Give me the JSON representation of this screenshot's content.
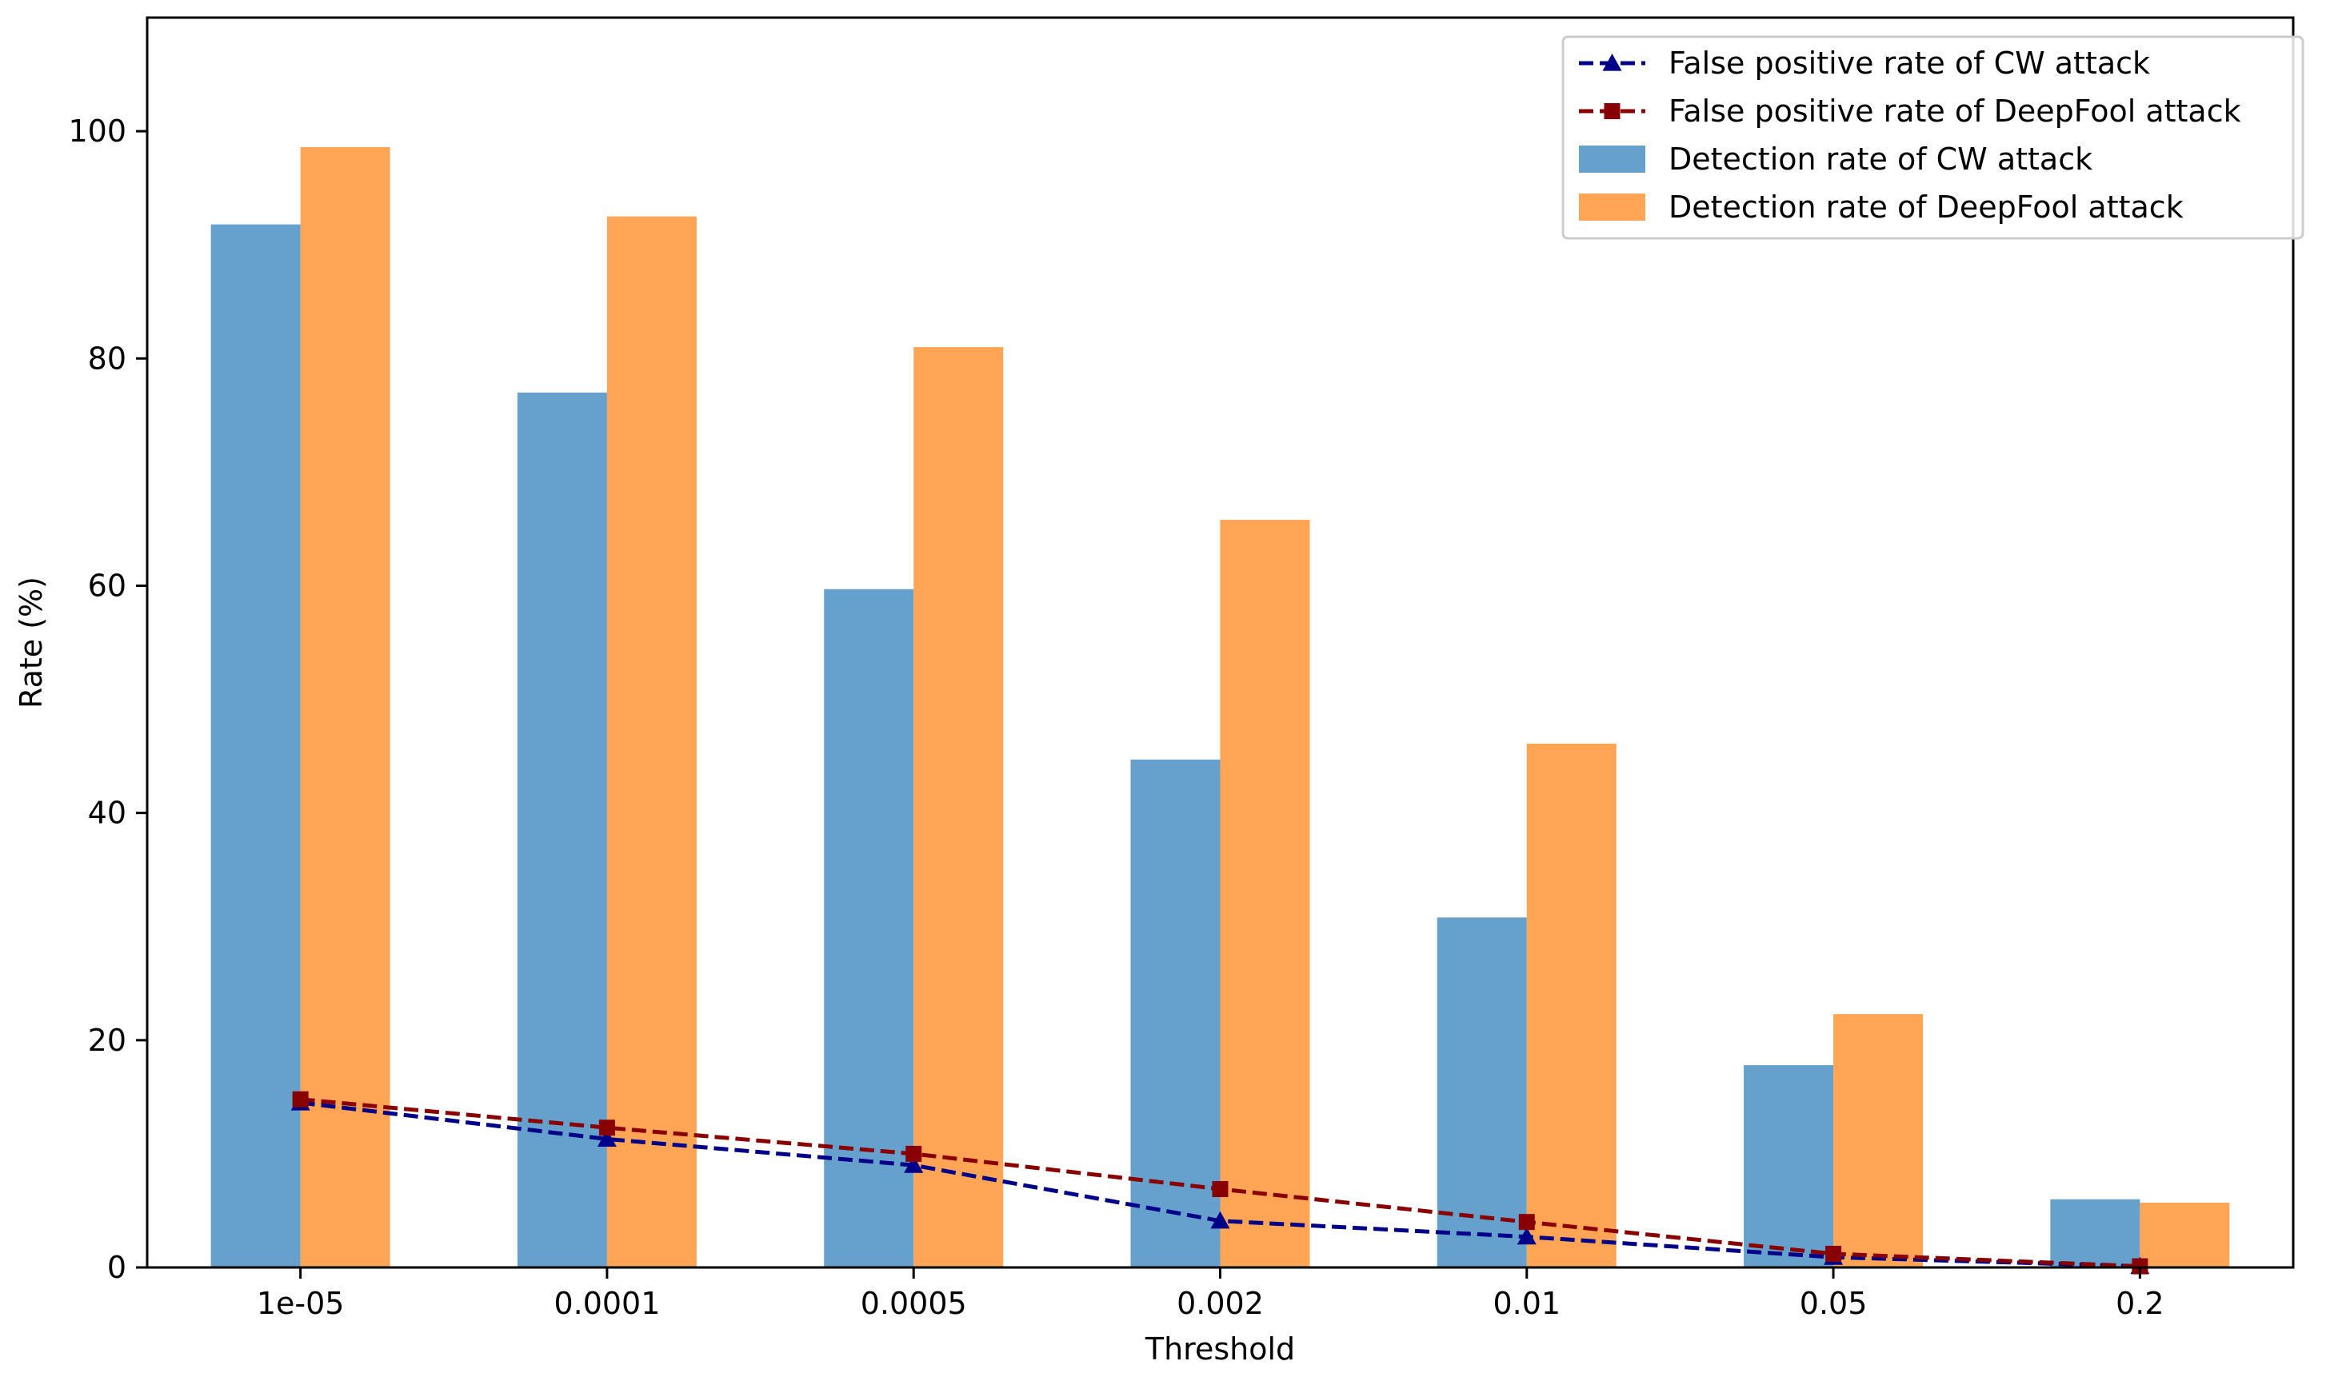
{
  "chart_data": {
    "type": "bar",
    "title": "",
    "xlabel": "Threshold",
    "ylabel": "Rate (%)",
    "ylim": [
      0,
      110
    ],
    "yticks": [
      0,
      20,
      40,
      60,
      80,
      100
    ],
    "categories": [
      "1e-05",
      "0.0001",
      "0.0005",
      "0.002",
      "0.01",
      "0.05",
      "0.2"
    ],
    "grid": false,
    "legend_position": "top-right",
    "bar_series": [
      {
        "name": "Detection rate of CW attack",
        "color": "#65a1cc",
        "values": [
          91.8,
          77.0,
          59.7,
          44.7,
          30.8,
          17.8,
          6.0
        ]
      },
      {
        "name": "Detection rate of DeepFool attack",
        "color": "#ffa555",
        "values": [
          98.6,
          92.5,
          81.0,
          65.8,
          46.1,
          22.3,
          5.7
        ]
      }
    ],
    "line_series": [
      {
        "name": "False positive rate of CW attack",
        "color": "#000088",
        "marker": "triangle",
        "linestyle": "dashed",
        "values": [
          14.5,
          11.3,
          9.0,
          4.1,
          2.7,
          0.9,
          0.1
        ]
      },
      {
        "name": "False positive rate of DeepFool attack",
        "color": "#880000",
        "marker": "square",
        "linestyle": "dashed",
        "values": [
          14.8,
          12.3,
          10.0,
          6.9,
          4.0,
          1.2,
          0.1
        ]
      }
    ],
    "legend_order": [
      "False positive rate of CW attack",
      "False positive rate of DeepFool attack",
      "Detection rate of CW attack",
      "Detection rate of DeepFool attack"
    ]
  }
}
